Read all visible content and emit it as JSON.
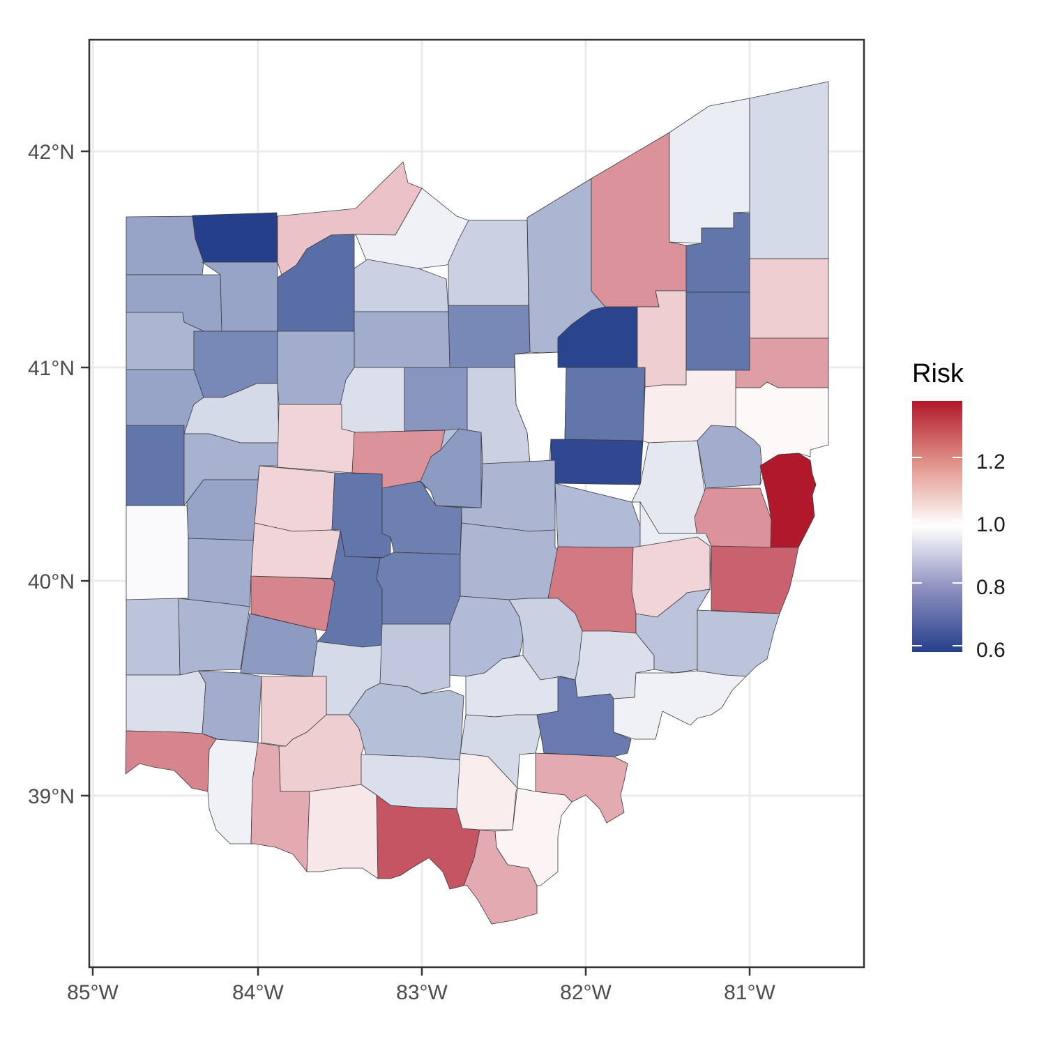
{
  "chart_data": {
    "type": "choropleth",
    "region": "Ohio counties",
    "x_ticks": [
      "85°W",
      "84°W",
      "83°W",
      "82°W",
      "81°W"
    ],
    "x_tick_values": [
      -85,
      -84,
      -83,
      -82,
      -81
    ],
    "y_ticks": [
      "42°N",
      "41°N",
      "40°N",
      "39°N"
    ],
    "y_tick_values": [
      42,
      41,
      40,
      39
    ],
    "xlim": [
      -85.0,
      -80.3
    ],
    "ylim": [
      38.3,
      42.5
    ],
    "grid": true,
    "legend": {
      "title": "Risk",
      "position": "right",
      "breaks": [
        0.6,
        0.8,
        1.0,
        1.2
      ],
      "break_labels": [
        "0.6",
        "0.8",
        "1.0",
        "1.2"
      ],
      "range": [
        0.58,
        1.38
      ],
      "colors": {
        "low": "#253f8b",
        "mid": "#ffffff",
        "high": "#b2182b"
      }
    },
    "counties": [
      {
        "id": "williams",
        "risk": 0.8
      },
      {
        "id": "fulton",
        "risk": 0.58
      },
      {
        "id": "lucas",
        "risk": 1.1
      },
      {
        "id": "ottawa",
        "risk": 0.97
      },
      {
        "id": "sandusky",
        "risk": 0.9
      },
      {
        "id": "erie",
        "risk": 0.9
      },
      {
        "id": "lorain",
        "risk": 0.84
      },
      {
        "id": "cuyahoga",
        "risk": 1.18
      },
      {
        "id": "lake",
        "risk": 0.96
      },
      {
        "id": "ashtabula",
        "risk": 0.92
      },
      {
        "id": "geauga",
        "risk": 0.7
      },
      {
        "id": "trumbull",
        "risk": 1.08
      },
      {
        "id": "defiance",
        "risk": 0.8
      },
      {
        "id": "henry",
        "risk": 0.8
      },
      {
        "id": "wood",
        "risk": 0.68
      },
      {
        "id": "seneca",
        "risk": 0.82
      },
      {
        "id": "huron",
        "risk": 0.74
      },
      {
        "id": "medina",
        "risk": 0.59
      },
      {
        "id": "summit",
        "risk": 1.08
      },
      {
        "id": "portage",
        "risk": 0.7
      },
      {
        "id": "paulding",
        "risk": 0.84
      },
      {
        "id": "putnam",
        "risk": 0.74
      },
      {
        "id": "hancock",
        "risk": 0.82
      },
      {
        "id": "wyandot",
        "risk": 0.93
      },
      {
        "id": "crawford",
        "risk": 0.77
      },
      {
        "id": "richland",
        "risk": 0.9
      },
      {
        "id": "ashland",
        "risk": 1.0
      },
      {
        "id": "wayne",
        "risk": 0.7
      },
      {
        "id": "stark",
        "risk": 1.03
      },
      {
        "id": "mahoning",
        "risk": 1.16
      },
      {
        "id": "columbiana",
        "risk": 1.01
      },
      {
        "id": "van_wert",
        "risk": 0.8
      },
      {
        "id": "allen",
        "risk": 0.92
      },
      {
        "id": "hardin",
        "risk": 1.07
      },
      {
        "id": "marion",
        "risk": 1.02
      },
      {
        "id": "morrow",
        "risk": 0.86
      },
      {
        "id": "knox",
        "risk": 0.6
      },
      {
        "id": "holmes",
        "risk": 0.95
      },
      {
        "id": "carroll",
        "risk": 0.82
      },
      {
        "id": "jefferson",
        "risk": 1.38
      },
      {
        "id": "mercer",
        "risk": 0.7
      },
      {
        "id": "auglaize",
        "risk": 0.83
      },
      {
        "id": "shelby",
        "risk": 0.8
      },
      {
        "id": "logan",
        "risk": 1.07
      },
      {
        "id": "union",
        "risk": 1.18
      },
      {
        "id": "delaware",
        "risk": 0.78
      },
      {
        "id": "licking",
        "risk": 0.84
      },
      {
        "id": "coshocton",
        "risk": 0.85
      },
      {
        "id": "tuscarawas",
        "risk": 0.96
      },
      {
        "id": "harrison",
        "risk": 1.18
      },
      {
        "id": "darke",
        "risk": 0.99
      },
      {
        "id": "miami",
        "risk": 0.82
      },
      {
        "id": "champaign",
        "risk": 0.7
      },
      {
        "id": "madison",
        "risk": 0.72
      },
      {
        "id": "franklin",
        "risk": 1.02
      },
      {
        "id": "perry",
        "risk": 0.9
      },
      {
        "id": "muskingum",
        "risk": 1.22
      },
      {
        "id": "guernsey",
        "risk": 1.07
      },
      {
        "id": "belmont",
        "risk": 1.26
      },
      {
        "id": "preble",
        "risk": 0.87
      },
      {
        "id": "montgomery",
        "risk": 0.84
      },
      {
        "id": "clark",
        "risk": 1.2
      },
      {
        "id": "greene",
        "risk": 0.78
      },
      {
        "id": "fayette",
        "risk": 0.92
      },
      {
        "id": "pickaway",
        "risk": 0.88
      },
      {
        "id": "fairfield",
        "risk": 0.85
      },
      {
        "id": "hocking",
        "risk": 0.94
      },
      {
        "id": "morgan",
        "risk": 0.93
      },
      {
        "id": "noble",
        "risk": 0.87
      },
      {
        "id": "monroe",
        "risk": 0.87
      },
      {
        "id": "butler",
        "risk": 0.93
      },
      {
        "id": "warren",
        "risk": 0.82
      },
      {
        "id": "clinton",
        "risk": 1.08
      },
      {
        "id": "highland",
        "risk": 1.08
      },
      {
        "id": "ross",
        "risk": 0.86
      },
      {
        "id": "vinton",
        "risk": 0.92
      },
      {
        "id": "athens",
        "risk": 0.71
      },
      {
        "id": "washington",
        "risk": 0.97
      },
      {
        "id": "hamilton",
        "risk": 1.2
      },
      {
        "id": "clermont",
        "risk": 0.97
      },
      {
        "id": "brown",
        "risk": 1.14
      },
      {
        "id": "adams",
        "risk": 1.04
      },
      {
        "id": "pike",
        "risk": 0.93
      },
      {
        "id": "jackson",
        "risk": 1.03
      },
      {
        "id": "meigs",
        "risk": 1.14
      },
      {
        "id": "gallia",
        "risk": 1.02
      },
      {
        "id": "scioto",
        "risk": 1.28
      },
      {
        "id": "lawrence",
        "risk": 1.14
      },
      {
        "id": "ross_south",
        "risk": 1.28
      }
    ]
  }
}
